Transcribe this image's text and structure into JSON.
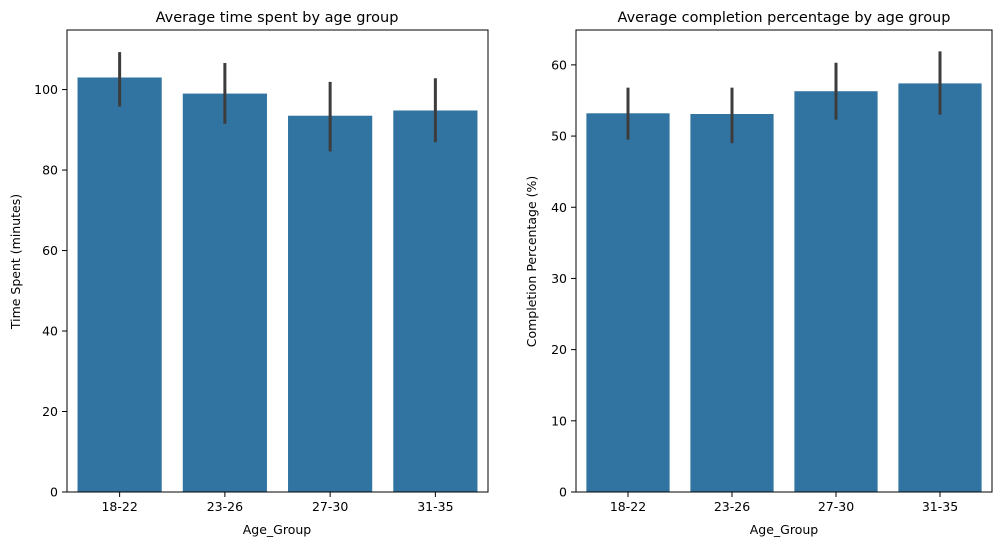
{
  "colors": {
    "bar": "#3274a1",
    "errorbar": "#3c3c3c",
    "axis": "#000000",
    "background": "#ffffff"
  },
  "chart_data": [
    {
      "type": "bar",
      "title": "Average time spent by age group",
      "xlabel": "Age_Group",
      "ylabel": "Time Spent (minutes)",
      "categories": [
        "18-22",
        "23-26",
        "27-30",
        "31-35"
      ],
      "values": [
        103.0,
        99.0,
        93.5,
        94.8
      ],
      "error_low": [
        95.8,
        91.5,
        84.6,
        86.9
      ],
      "error_high": [
        109.3,
        106.6,
        101.9,
        102.8
      ],
      "ylim": [
        0,
        114.8
      ],
      "yticks": [
        0,
        20,
        40,
        60,
        80,
        100
      ],
      "grid": false,
      "legend": "none"
    },
    {
      "type": "bar",
      "title": "Average completion percentage by age group",
      "xlabel": "Age_Group",
      "ylabel": "Completion Percentage (%)",
      "categories": [
        "18-22",
        "23-26",
        "27-30",
        "31-35"
      ],
      "values": [
        53.2,
        53.1,
        56.3,
        57.4
      ],
      "error_low": [
        49.5,
        49.0,
        52.3,
        53.0
      ],
      "error_high": [
        56.8,
        56.8,
        60.3,
        61.9
      ],
      "ylim": [
        0,
        64.9
      ],
      "yticks": [
        0,
        10,
        20,
        30,
        40,
        50,
        60
      ],
      "grid": false,
      "legend": "none"
    }
  ]
}
